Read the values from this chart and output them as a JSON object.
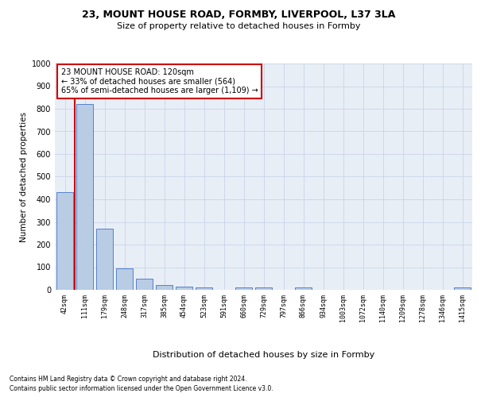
{
  "title1": "23, MOUNT HOUSE ROAD, FORMBY, LIVERPOOL, L37 3LA",
  "title2": "Size of property relative to detached houses in Formby",
  "xlabel": "Distribution of detached houses by size in Formby",
  "ylabel": "Number of detached properties",
  "bar_labels": [
    "42sqm",
    "111sqm",
    "179sqm",
    "248sqm",
    "317sqm",
    "385sqm",
    "454sqm",
    "523sqm",
    "591sqm",
    "660sqm",
    "729sqm",
    "797sqm",
    "866sqm",
    "934sqm",
    "1003sqm",
    "1072sqm",
    "1140sqm",
    "1209sqm",
    "1278sqm",
    "1346sqm",
    "1415sqm"
  ],
  "bar_values": [
    430,
    820,
    270,
    93,
    48,
    22,
    14,
    11,
    0,
    10,
    10,
    0,
    10,
    0,
    0,
    0,
    0,
    0,
    0,
    0,
    10
  ],
  "bar_color": "#b8cce4",
  "bar_edge_color": "#4472c4",
  "vline_color": "#cc0000",
  "vline_index": 1,
  "annotation_line1": "23 MOUNT HOUSE ROAD: 120sqm",
  "annotation_line2": "← 33% of detached houses are smaller (564)",
  "annotation_line3": "65% of semi-detached houses are larger (1,109) →",
  "ylim_max": 1000,
  "yticks": [
    0,
    100,
    200,
    300,
    400,
    500,
    600,
    700,
    800,
    900,
    1000
  ],
  "footnote1": "Contains HM Land Registry data © Crown copyright and database right 2024.",
  "footnote2": "Contains public sector information licensed under the Open Government Licence v3.0.",
  "grid_color": "#c8d4e8",
  "bg_color": "#e8eef6",
  "title1_fontsize": 9,
  "title2_fontsize": 8,
  "ylabel_fontsize": 7.5,
  "xlabel_fontsize": 8,
  "tick_fontsize": 6,
  "annot_fontsize": 7,
  "footnote_fontsize": 5.5
}
